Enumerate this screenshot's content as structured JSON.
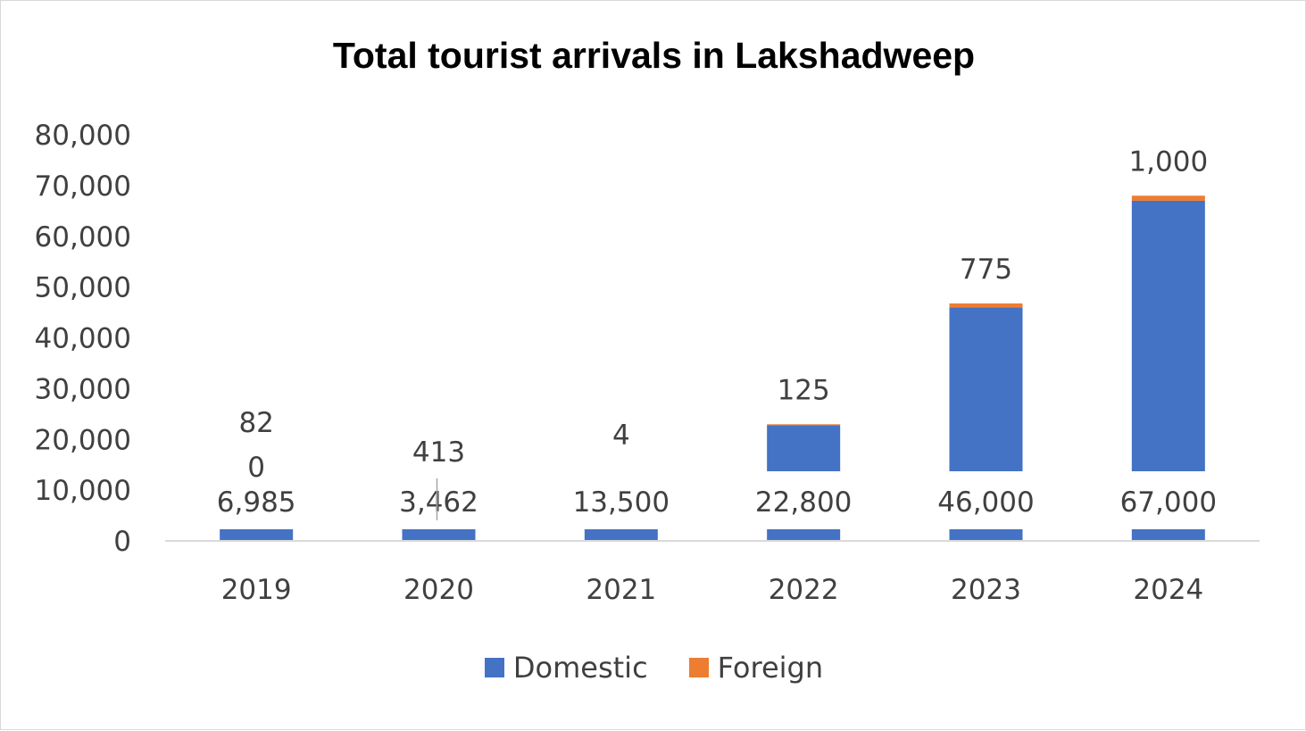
{
  "chart_data": {
    "type": "bar",
    "stacked": true,
    "title": "Total tourist arrivals in Lakshadweep",
    "xlabel": "",
    "ylabel": "",
    "categories": [
      "2019",
      "2020",
      "2021",
      "2022",
      "2023",
      "2024"
    ],
    "ylim": [
      0,
      80000
    ],
    "yticks": [
      "0",
      "10,000",
      "20,000",
      "30,000",
      "40,000",
      "50,000",
      "60,000",
      "70,000",
      "80,000"
    ],
    "grid": false,
    "legend": "bottom",
    "series": [
      {
        "name": "Domestic",
        "color": "#4472C4",
        "values": [
          6985,
          3462,
          13500,
          22800,
          46000,
          67000
        ],
        "labels": [
          "6,985",
          "3,462",
          "13,500",
          "22,800",
          "46,000",
          "67,000"
        ]
      },
      {
        "name": "Foreign",
        "color": "#ED7D31",
        "values": [
          820,
          413,
          4,
          125,
          775,
          1000
        ],
        "labels": [
          "820",
          "413",
          "4",
          "125",
          "775",
          "1,000"
        ]
      }
    ]
  }
}
